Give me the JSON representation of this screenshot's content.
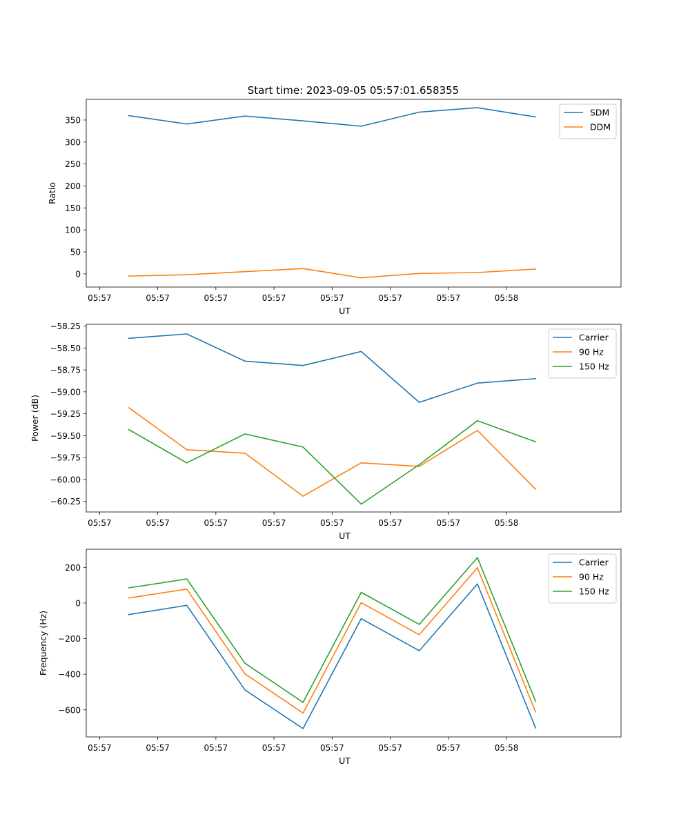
{
  "title": "Start time: 2023-09-05 05:57:01.658355",
  "colors": {
    "blue": "#1f77b4",
    "orange": "#ff7f0e",
    "green": "#2ca02c"
  },
  "chart_data": [
    {
      "type": "line",
      "name": "ratio",
      "xlabel": "UT",
      "ylabel": "Ratio",
      "xtick_labels": [
        "05:57",
        "05:57",
        "05:57",
        "05:57",
        "05:57",
        "05:57",
        "05:57",
        "05:58"
      ],
      "xlim": [
        -0.23,
        8.97
      ],
      "x": [
        0.5,
        1.5,
        2.5,
        3.5,
        4.5,
        5.5,
        6.5,
        7.5
      ],
      "ylim": [
        -30,
        397
      ],
      "yticks": [
        0,
        50,
        100,
        150,
        200,
        250,
        300,
        350
      ],
      "ytick_labels": [
        "0",
        "50",
        "100",
        "150",
        "200",
        "250",
        "300",
        "350"
      ],
      "legend": "top-right",
      "series": [
        {
          "name": "SDM",
          "color": "#1f77b4",
          "values": [
            360,
            341,
            359,
            348,
            336,
            368,
            378,
            357
          ]
        },
        {
          "name": "DDM",
          "color": "#ff7f0e",
          "values": [
            -5,
            -2,
            5,
            12,
            -9,
            1,
            3,
            11
          ]
        }
      ]
    },
    {
      "type": "line",
      "name": "power",
      "xlabel": "UT",
      "ylabel": "Power (dB)",
      "xtick_labels": [
        "05:57",
        "05:57",
        "05:57",
        "05:57",
        "05:57",
        "05:57",
        "05:57",
        "05:58"
      ],
      "xlim": [
        -0.23,
        8.97
      ],
      "x": [
        0.5,
        1.5,
        2.5,
        3.5,
        4.5,
        5.5,
        6.5,
        7.5
      ],
      "ylim": [
        -60.37,
        -58.23
      ],
      "yticks": [
        -60.25,
        -60.0,
        -59.75,
        -59.5,
        -59.25,
        -59.0,
        -58.75,
        -58.5,
        -58.25
      ],
      "ytick_labels": [
        "−60.25",
        "−60.00",
        "−59.75",
        "−59.50",
        "−59.25",
        "−59.00",
        "−58.75",
        "−58.50",
        "−58.25"
      ],
      "legend": "top-right",
      "series": [
        {
          "name": "Carrier",
          "color": "#1f77b4",
          "values": [
            -58.39,
            -58.34,
            -58.65,
            -58.7,
            -58.54,
            -59.12,
            -58.9,
            -58.85
          ]
        },
        {
          "name": "90 Hz",
          "color": "#ff7f0e",
          "values": [
            -59.18,
            -59.66,
            -59.7,
            -60.19,
            -59.81,
            -59.85,
            -59.44,
            -60.11
          ]
        },
        {
          "name": "150 Hz",
          "color": "#2ca02c",
          "values": [
            -59.43,
            -59.81,
            -59.48,
            -59.63,
            -60.28,
            -59.83,
            -59.33,
            -59.57
          ]
        }
      ]
    },
    {
      "type": "line",
      "name": "frequency",
      "xlabel": "UT",
      "ylabel": "Frequency (Hz)",
      "xtick_labels": [
        "05:57",
        "05:57",
        "05:57",
        "05:57",
        "05:57",
        "05:57",
        "05:57",
        "05:58"
      ],
      "xlim": [
        -0.23,
        8.97
      ],
      "x": [
        0.5,
        1.5,
        2.5,
        3.5,
        4.5,
        5.5,
        6.5,
        7.5
      ],
      "ylim": [
        -752,
        302
      ],
      "yticks": [
        -600,
        -400,
        -200,
        0,
        200
      ],
      "ytick_labels": [
        "−600",
        "−400",
        "−200",
        "0",
        "200"
      ],
      "legend": "top-right",
      "series": [
        {
          "name": "Carrier",
          "color": "#1f77b4",
          "values": [
            -65,
            -13,
            -488,
            -705,
            -88,
            -268,
            107,
            -702
          ]
        },
        {
          "name": "90 Hz",
          "color": "#ff7f0e",
          "values": [
            28,
            78,
            -398,
            -618,
            2,
            -178,
            198,
            -612
          ]
        },
        {
          "name": "150 Hz",
          "color": "#2ca02c",
          "values": [
            85,
            135,
            -338,
            -558,
            60,
            -120,
            255,
            -552
          ]
        }
      ]
    }
  ]
}
